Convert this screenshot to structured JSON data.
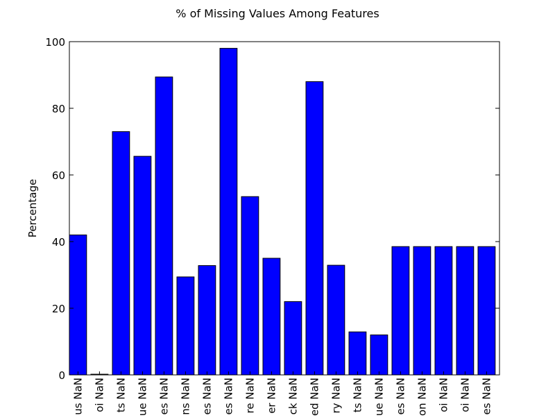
{
  "chart_data": {
    "type": "bar",
    "title": "% of Missing Values Among Features",
    "xlabel": "",
    "ylabel": "Percentage",
    "ylim": [
      0,
      100
    ],
    "yticks": [
      0,
      20,
      40,
      60,
      80,
      100
    ],
    "grid": false,
    "bar_color": "#0000ff",
    "categories": [
      "us NaN",
      "oi NaN",
      "ts NaN",
      "ue NaN",
      "es NaN",
      "ns NaN",
      "es NaN",
      "es NaN",
      "re NaN",
      "er NaN",
      "ck NaN",
      "ed NaN",
      "ry NaN",
      "ts NaN",
      "ue NaN",
      "es NaN",
      "on NaN",
      "oi NaN",
      "oi NaN",
      "es NaN"
    ],
    "values": [
      42,
      0.2,
      73,
      65.6,
      89.4,
      29.4,
      32.8,
      98,
      53.5,
      35,
      22,
      88,
      32.9,
      12.9,
      12,
      38.5,
      38.5,
      38.5,
      38.5,
      38.5
    ]
  }
}
